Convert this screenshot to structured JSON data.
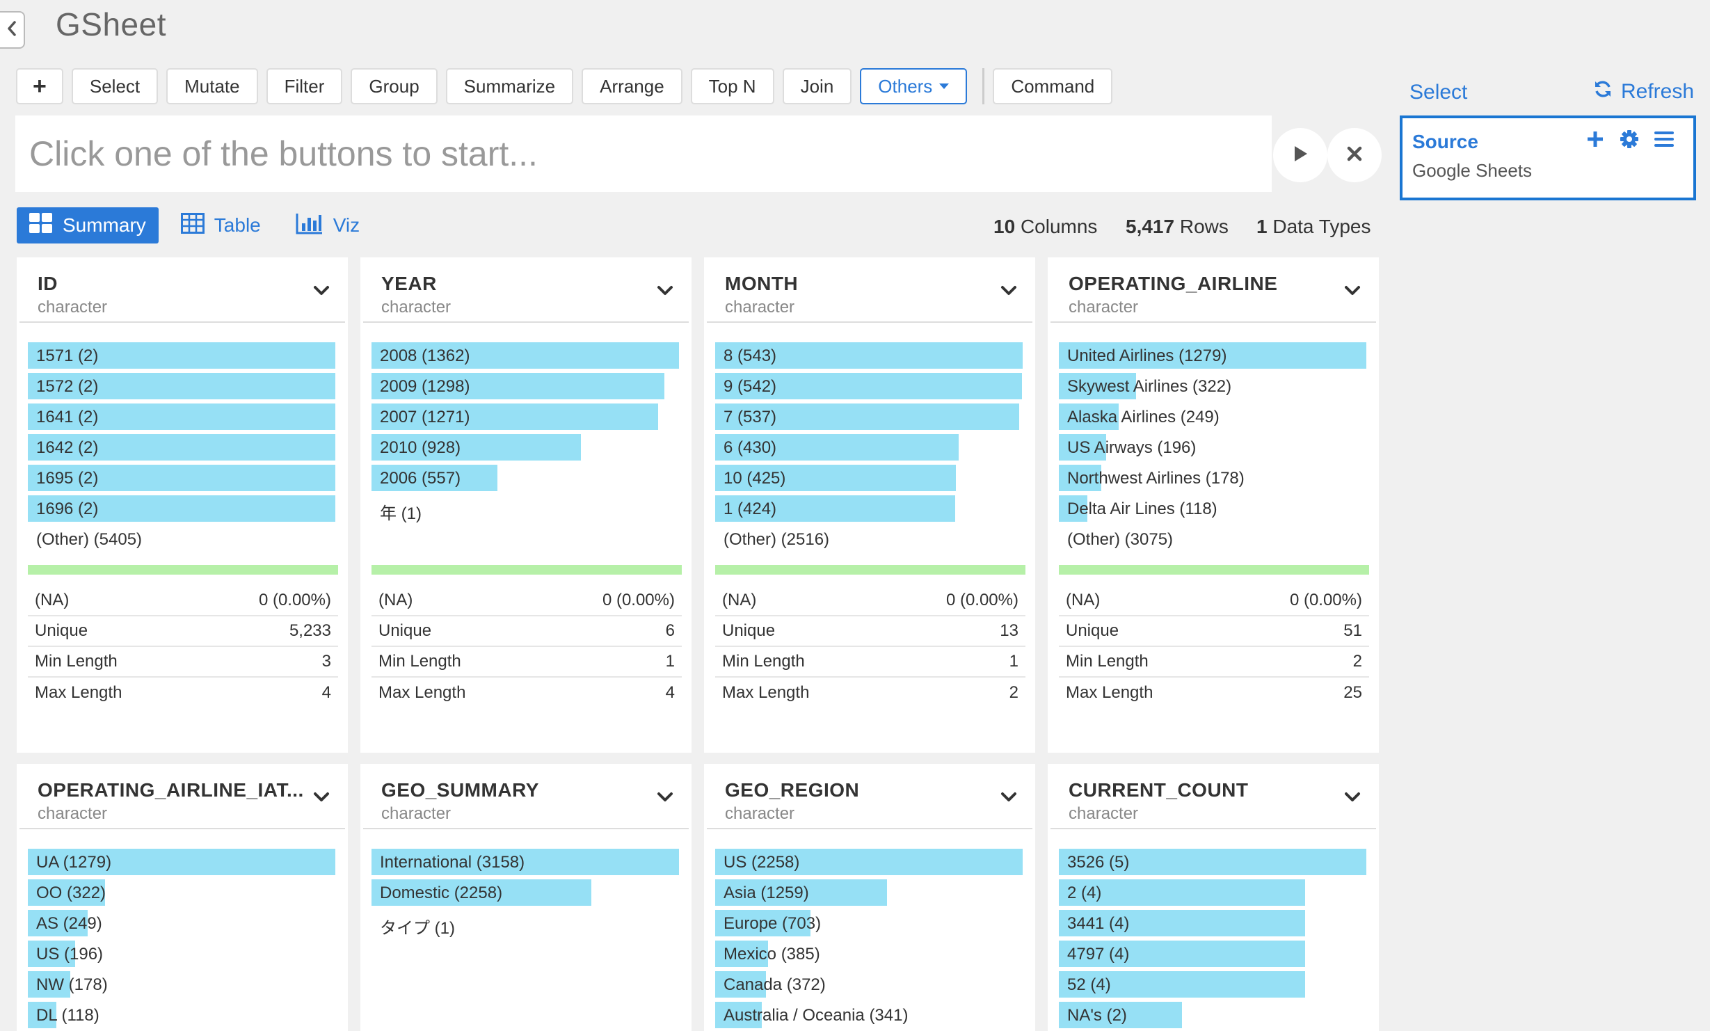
{
  "app": {
    "title": "GSheet"
  },
  "toolbar": {
    "buttons": [
      "Select",
      "Mutate",
      "Filter",
      "Group",
      "Summarize",
      "Arrange",
      "Top N",
      "Join"
    ],
    "others_label": "Others",
    "command_label": "Command"
  },
  "command_input": {
    "placeholder": "Click one of the buttons to start..."
  },
  "view_tabs": {
    "summary": "Summary",
    "table": "Table",
    "viz": "Viz"
  },
  "stats": {
    "columns_count": "10",
    "columns_label": "Columns",
    "rows_count": "5,417",
    "rows_label": "Rows",
    "types_count": "1",
    "types_label": "Data Types"
  },
  "right_panel": {
    "select_label": "Select",
    "refresh_label": "Refresh",
    "source_title": "Source",
    "source_name": "Google Sheets"
  },
  "accent_color": "#2b7ad8",
  "cards": [
    {
      "name": "ID",
      "type": "character",
      "bars": [
        {
          "label": "1571 (2)",
          "frac": 1.0
        },
        {
          "label": "1572 (2)",
          "frac": 1.0
        },
        {
          "label": "1641 (2)",
          "frac": 1.0
        },
        {
          "label": "1642 (2)",
          "frac": 1.0
        },
        {
          "label": "1695 (2)",
          "frac": 1.0
        },
        {
          "label": "1696 (2)",
          "frac": 1.0
        }
      ],
      "other": "(Other) (5405)",
      "stats": [
        [
          "(NA)",
          "0 (0.00%)"
        ],
        [
          "Unique",
          "5,233"
        ],
        [
          "Min Length",
          "3"
        ],
        [
          "Max Length",
          "4"
        ]
      ]
    },
    {
      "name": "YEAR",
      "type": "character",
      "bars": [
        {
          "label": "2008 (1362)",
          "frac": 1.0
        },
        {
          "label": "2009 (1298)",
          "frac": 0.953
        },
        {
          "label": "2007 (1271)",
          "frac": 0.933
        },
        {
          "label": "2010 (928)",
          "frac": 0.681
        },
        {
          "label": "2006 (557)",
          "frac": 0.409
        }
      ],
      "other": "年 (1)",
      "stats": [
        [
          "(NA)",
          "0 (0.00%)"
        ],
        [
          "Unique",
          "6"
        ],
        [
          "Min Length",
          "1"
        ],
        [
          "Max Length",
          "4"
        ]
      ]
    },
    {
      "name": "MONTH",
      "type": "character",
      "bars": [
        {
          "label": "8 (543)",
          "frac": 1.0
        },
        {
          "label": "9 (542)",
          "frac": 0.998
        },
        {
          "label": "7 (537)",
          "frac": 0.989
        },
        {
          "label": "6 (430)",
          "frac": 0.792
        },
        {
          "label": "10 (425)",
          "frac": 0.783
        },
        {
          "label": "1 (424)",
          "frac": 0.781
        }
      ],
      "other": "(Other) (2516)",
      "stats": [
        [
          "(NA)",
          "0 (0.00%)"
        ],
        [
          "Unique",
          "13"
        ],
        [
          "Min Length",
          "1"
        ],
        [
          "Max Length",
          "2"
        ]
      ]
    },
    {
      "name": "OPERATING_AIRLINE",
      "type": "character",
      "bars": [
        {
          "label": "United Airlines (1279)",
          "frac": 1.0
        },
        {
          "label": "Skywest Airlines (322)",
          "frac": 0.252
        },
        {
          "label": "Alaska Airlines (249)",
          "frac": 0.195
        },
        {
          "label": "US Airways (196)",
          "frac": 0.153
        },
        {
          "label": "Northwest Airlines (178)",
          "frac": 0.139
        },
        {
          "label": "Delta Air Lines (118)",
          "frac": 0.092
        }
      ],
      "other": "(Other) (3075)",
      "stats": [
        [
          "(NA)",
          "0 (0.00%)"
        ],
        [
          "Unique",
          "51"
        ],
        [
          "Min Length",
          "2"
        ],
        [
          "Max Length",
          "25"
        ]
      ]
    },
    {
      "name": "OPERATING_AIRLINE_IAT...",
      "type": "character",
      "bars": [
        {
          "label": "UA (1279)",
          "frac": 1.0
        },
        {
          "label": "OO (322)",
          "frac": 0.252
        },
        {
          "label": "AS (249)",
          "frac": 0.195
        },
        {
          "label": "US (196)",
          "frac": 0.153
        },
        {
          "label": "NW (178)",
          "frac": 0.139
        },
        {
          "label": "DL (118)",
          "frac": 0.092
        }
      ],
      "other": "",
      "stats": []
    },
    {
      "name": "GEO_SUMMARY",
      "type": "character",
      "bars": [
        {
          "label": "International (3158)",
          "frac": 1.0
        },
        {
          "label": "Domestic (2258)",
          "frac": 0.715
        }
      ],
      "other": "タイプ (1)",
      "stats": []
    },
    {
      "name": "GEO_REGION",
      "type": "character",
      "bars": [
        {
          "label": "US (2258)",
          "frac": 1.0
        },
        {
          "label": "Asia (1259)",
          "frac": 0.558
        },
        {
          "label": "Europe (703)",
          "frac": 0.311
        },
        {
          "label": "Mexico (385)",
          "frac": 0.171
        },
        {
          "label": "Canada (372)",
          "frac": 0.165
        },
        {
          "label": "Australia / Oceania (341)",
          "frac": 0.151
        }
      ],
      "other": "",
      "stats": []
    },
    {
      "name": "CURRENT_COUNT",
      "type": "character",
      "bars": [
        {
          "label": "3526 (5)",
          "frac": 1.0
        },
        {
          "label": "2 (4)",
          "frac": 0.8
        },
        {
          "label": "3441 (4)",
          "frac": 0.8
        },
        {
          "label": "4797 (4)",
          "frac": 0.8
        },
        {
          "label": "52 (4)",
          "frac": 0.8
        },
        {
          "label": "NA's (2)",
          "frac": 0.4
        }
      ],
      "other": "",
      "stats": []
    }
  ]
}
